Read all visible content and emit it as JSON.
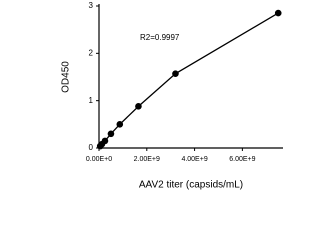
{
  "chart_data": {
    "type": "scatter",
    "annotation": "R2=0.9997",
    "x_label": "AAV2 titer (capsids/mL)",
    "y_label": "OD450",
    "x": [
      50000000,
      120000000,
      250000000,
      500000000,
      870000000,
      1650000000,
      3200000000,
      7500000000
    ],
    "series": [
      {
        "color": "#000000",
        "values": [
          0.04,
          0.08,
          0.15,
          0.3,
          0.5,
          0.88,
          1.57,
          2.85
        ]
      }
    ],
    "xlim": [
      0,
      7700000000
    ],
    "ylim": [
      0,
      3
    ],
    "xticks": [
      {
        "value": 0,
        "label": "0.00E+0"
      },
      {
        "value": 2000000000,
        "label": "2.00E+9"
      },
      {
        "value": 4000000000,
        "label": "4.00E+9"
      },
      {
        "value": 6000000000,
        "label": "6.00E+9"
      }
    ],
    "yticks": [
      0,
      1,
      2,
      3
    ]
  }
}
